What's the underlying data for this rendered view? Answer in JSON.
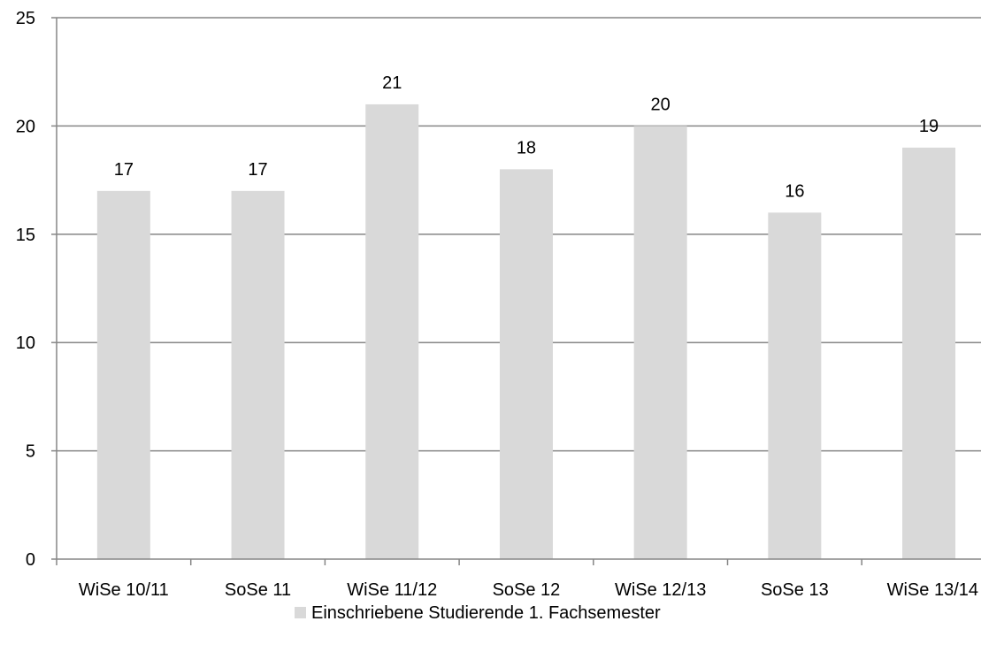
{
  "chart_data": {
    "type": "bar",
    "categories": [
      "WiSe 10/11",
      "SoSe 11",
      "WiSe 11/12",
      "SoSe 12",
      "WiSe 12/13",
      "SoSe 13",
      "WiSe 13/14"
    ],
    "series": [
      {
        "name": "Einschriebene Studierende 1. Fachsemester",
        "values": [
          17,
          17,
          21,
          18,
          20,
          16,
          19
        ],
        "color": "#d9d9d9"
      }
    ],
    "ylim": [
      0,
      25
    ],
    "yticks": [
      0,
      5,
      10,
      15,
      20,
      25
    ],
    "grid": true,
    "data_labels": true,
    "legend_position": "bottom",
    "title": "",
    "xlabel": "",
    "ylabel": ""
  },
  "colors": {
    "bar": "#d9d9d9",
    "gridline": "#868686",
    "axis": "#868686",
    "text": "#000000"
  }
}
